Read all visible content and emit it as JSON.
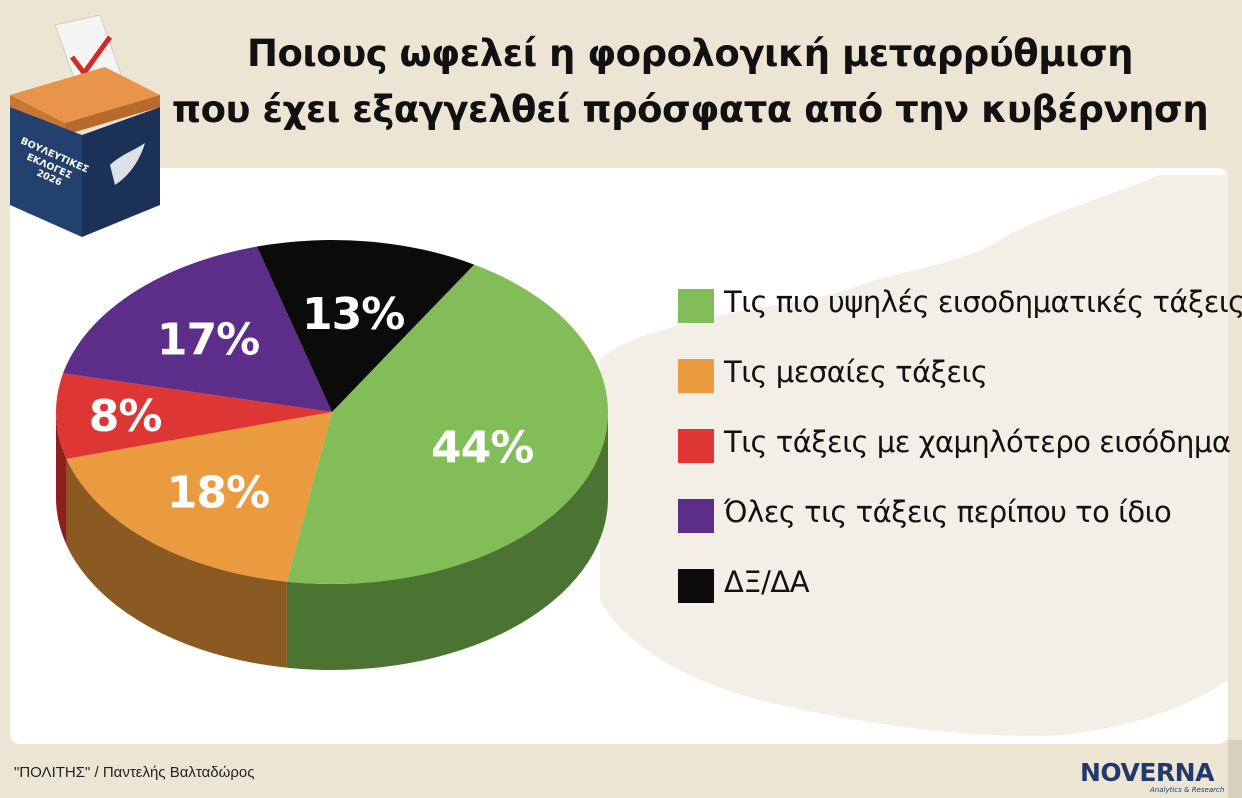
{
  "title": {
    "line1": "Ποιους ωφελεί η φορολογική μεταρρύθμιση",
    "line2": "που έχει εξαγγελθεί πρόσφατα από την κυβέρνηση"
  },
  "badge": {
    "line1": "ΒΟΥΛΕΥΤΙΚΕΣ",
    "line2": "ΕΚΛΟΓΕΣ",
    "line3": "2026"
  },
  "chart_data": {
    "type": "pie",
    "title": "Ποιους ωφελεί η φορολογική μεταρρύθμιση που έχει εξαγγελθεί πρόσφατα από την κυβέρνηση",
    "categories": [
      "Τις πιο υψηλές εισοδηματικές τάξεις",
      "Τις μεσαίες τάξεις",
      "Τις τάξεις με χαμηλότερο εισόδημα",
      "Όλες τις τάξεις περίπου το ίδιο",
      "ΔΞ/ΔΑ"
    ],
    "values": [
      44,
      18,
      8,
      17,
      13
    ],
    "value_labels": [
      "44%",
      "18%",
      "8%",
      "17%",
      "13%"
    ],
    "colors": [
      "#82bd57",
      "#ea9a3f",
      "#dd3634",
      "#5c2e8a",
      "#0b0b0b"
    ],
    "side_colors": [
      "#4b7433",
      "#8a5a22",
      "#8e1f1c",
      "#3a1d58",
      "#000000"
    ],
    "legend_position": "right",
    "grid": false
  },
  "source": "\"ΠΟΛΙΤΗΣ\" / Παντελής Βαλταδώρος",
  "brand": {
    "name": "NOVERNA",
    "tagline": "Analytics & Research"
  }
}
